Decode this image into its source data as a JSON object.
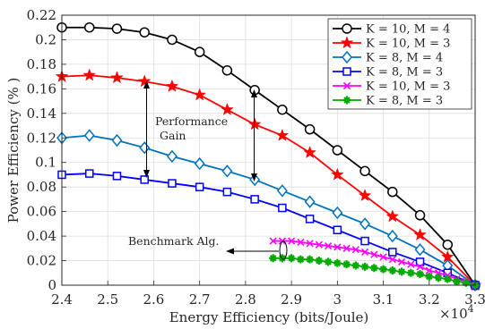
{
  "chart_data": {
    "type": "line",
    "xlabel": "Energy Efficiency (bits/Joule)",
    "ylabel": "Power Efficiency (% )",
    "x_multiplier_label": "×10",
    "x_multiplier_exp": "4",
    "xlim": [
      2.4,
      3.3
    ],
    "ylim": [
      0,
      0.22
    ],
    "xticks": [
      "2.4",
      "2.5",
      "2.6",
      "2.7",
      "2.8",
      "2.9",
      "3",
      "3.1",
      "3.2",
      "3.3"
    ],
    "yticks": [
      "0",
      "0.02",
      "0.04",
      "0.06",
      "0.08",
      "0.1",
      "0.12",
      "0.14",
      "0.16",
      "0.18",
      "0.2",
      "0.22"
    ],
    "grid": true,
    "legend_position": "top-right",
    "series": [
      {
        "name": "K = 10, M = 4",
        "color": "#000000",
        "marker": "circle",
        "x": [
          2.4,
          2.46,
          2.52,
          2.58,
          2.64,
          2.7,
          2.76,
          2.82,
          2.88,
          2.94,
          3.0,
          3.06,
          3.12,
          3.18,
          3.24,
          3.3
        ],
        "y": [
          0.21,
          0.21,
          0.209,
          0.206,
          0.2,
          0.19,
          0.175,
          0.159,
          0.143,
          0.127,
          0.11,
          0.093,
          0.076,
          0.057,
          0.033,
          0.0
        ]
      },
      {
        "name": "K = 10, M = 3",
        "color": "#ff0000",
        "marker": "star",
        "x": [
          2.4,
          2.46,
          2.52,
          2.58,
          2.64,
          2.7,
          2.76,
          2.82,
          2.88,
          2.94,
          3.0,
          3.06,
          3.12,
          3.18,
          3.24,
          3.3
        ],
        "y": [
          0.17,
          0.171,
          0.169,
          0.166,
          0.162,
          0.155,
          0.143,
          0.131,
          0.122,
          0.108,
          0.09,
          0.073,
          0.056,
          0.041,
          0.023,
          0.0
        ]
      },
      {
        "name": "K = 8,   M = 4",
        "color": "#0072bd",
        "marker": "diamond",
        "x": [
          2.4,
          2.46,
          2.52,
          2.58,
          2.64,
          2.7,
          2.76,
          2.82,
          2.88,
          2.94,
          3.0,
          3.06,
          3.12,
          3.18,
          3.24,
          3.3
        ],
        "y": [
          0.12,
          0.122,
          0.118,
          0.112,
          0.105,
          0.099,
          0.093,
          0.086,
          0.077,
          0.068,
          0.059,
          0.05,
          0.04,
          0.029,
          0.016,
          0.0
        ]
      },
      {
        "name": "K = 8,   M = 3",
        "color": "#0000ff",
        "marker": "square",
        "x": [
          2.4,
          2.46,
          2.52,
          2.58,
          2.64,
          2.7,
          2.76,
          2.82,
          2.88,
          2.94,
          3.0,
          3.06,
          3.12,
          3.18,
          3.24,
          3.3
        ],
        "y": [
          0.09,
          0.091,
          0.089,
          0.086,
          0.083,
          0.08,
          0.076,
          0.07,
          0.063,
          0.054,
          0.045,
          0.036,
          0.027,
          0.019,
          0.01,
          0.0
        ]
      },
      {
        "name": "K = 10, M = 3",
        "color": "#ff00ff",
        "marker": "x",
        "x": [
          2.86,
          2.88,
          2.9,
          2.92,
          2.94,
          2.96,
          2.98,
          3.0,
          3.02,
          3.04,
          3.06,
          3.08,
          3.1,
          3.12,
          3.14,
          3.16,
          3.18,
          3.2,
          3.22,
          3.24,
          3.26,
          3.28,
          3.3
        ],
        "y": [
          0.036,
          0.036,
          0.036,
          0.035,
          0.034,
          0.033,
          0.032,
          0.031,
          0.03,
          0.029,
          0.027,
          0.025,
          0.023,
          0.021,
          0.019,
          0.017,
          0.015,
          0.012,
          0.01,
          0.008,
          0.005,
          0.003,
          0.0
        ]
      },
      {
        "name": "K = 8,   M = 3",
        "color": "#00aa00",
        "marker": "plus",
        "x": [
          2.86,
          2.88,
          2.9,
          2.92,
          2.94,
          2.96,
          2.98,
          3.0,
          3.02,
          3.04,
          3.06,
          3.08,
          3.1,
          3.12,
          3.14,
          3.16,
          3.18,
          3.2,
          3.22,
          3.24,
          3.26,
          3.28,
          3.3
        ],
        "y": [
          0.022,
          0.022,
          0.022,
          0.021,
          0.021,
          0.02,
          0.019,
          0.018,
          0.017,
          0.016,
          0.015,
          0.014,
          0.013,
          0.012,
          0.011,
          0.01,
          0.009,
          0.007,
          0.006,
          0.005,
          0.003,
          0.002,
          0.0
        ]
      }
    ],
    "annotations": [
      {
        "text_lines": [
          "Performance",
          "Gain"
        ]
      },
      {
        "text": "Benchmark Alg."
      }
    ]
  }
}
